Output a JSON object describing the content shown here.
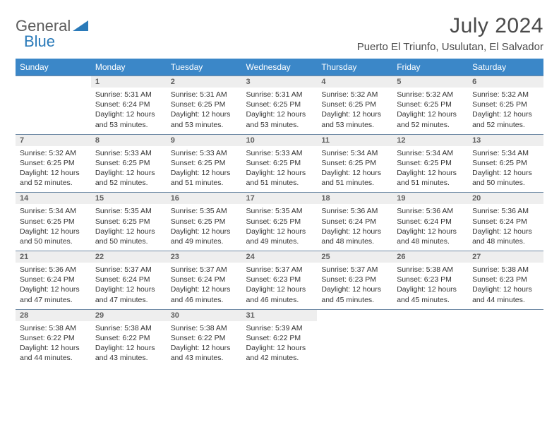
{
  "logo": {
    "general": "General",
    "blue": "Blue"
  },
  "title": "July 2024",
  "location": "Puerto El Triunfo, Usulutan, El Salvador",
  "header_bg": "#3b87c8",
  "header_fg": "#ffffff",
  "daynum_bg": "#eeeeee",
  "rule_color": "#6f8aa5",
  "weekdays": [
    "Sunday",
    "Monday",
    "Tuesday",
    "Wednesday",
    "Thursday",
    "Friday",
    "Saturday"
  ],
  "start_offset": 1,
  "days": [
    {
      "n": 1,
      "sr": "5:31 AM",
      "ss": "6:24 PM",
      "dl": "12 hours and 53 minutes."
    },
    {
      "n": 2,
      "sr": "5:31 AM",
      "ss": "6:25 PM",
      "dl": "12 hours and 53 minutes."
    },
    {
      "n": 3,
      "sr": "5:31 AM",
      "ss": "6:25 PM",
      "dl": "12 hours and 53 minutes."
    },
    {
      "n": 4,
      "sr": "5:32 AM",
      "ss": "6:25 PM",
      "dl": "12 hours and 53 minutes."
    },
    {
      "n": 5,
      "sr": "5:32 AM",
      "ss": "6:25 PM",
      "dl": "12 hours and 52 minutes."
    },
    {
      "n": 6,
      "sr": "5:32 AM",
      "ss": "6:25 PM",
      "dl": "12 hours and 52 minutes."
    },
    {
      "n": 7,
      "sr": "5:32 AM",
      "ss": "6:25 PM",
      "dl": "12 hours and 52 minutes."
    },
    {
      "n": 8,
      "sr": "5:33 AM",
      "ss": "6:25 PM",
      "dl": "12 hours and 52 minutes."
    },
    {
      "n": 9,
      "sr": "5:33 AM",
      "ss": "6:25 PM",
      "dl": "12 hours and 51 minutes."
    },
    {
      "n": 10,
      "sr": "5:33 AM",
      "ss": "6:25 PM",
      "dl": "12 hours and 51 minutes."
    },
    {
      "n": 11,
      "sr": "5:34 AM",
      "ss": "6:25 PM",
      "dl": "12 hours and 51 minutes."
    },
    {
      "n": 12,
      "sr": "5:34 AM",
      "ss": "6:25 PM",
      "dl": "12 hours and 51 minutes."
    },
    {
      "n": 13,
      "sr": "5:34 AM",
      "ss": "6:25 PM",
      "dl": "12 hours and 50 minutes."
    },
    {
      "n": 14,
      "sr": "5:34 AM",
      "ss": "6:25 PM",
      "dl": "12 hours and 50 minutes."
    },
    {
      "n": 15,
      "sr": "5:35 AM",
      "ss": "6:25 PM",
      "dl": "12 hours and 50 minutes."
    },
    {
      "n": 16,
      "sr": "5:35 AM",
      "ss": "6:25 PM",
      "dl": "12 hours and 49 minutes."
    },
    {
      "n": 17,
      "sr": "5:35 AM",
      "ss": "6:25 PM",
      "dl": "12 hours and 49 minutes."
    },
    {
      "n": 18,
      "sr": "5:36 AM",
      "ss": "6:24 PM",
      "dl": "12 hours and 48 minutes."
    },
    {
      "n": 19,
      "sr": "5:36 AM",
      "ss": "6:24 PM",
      "dl": "12 hours and 48 minutes."
    },
    {
      "n": 20,
      "sr": "5:36 AM",
      "ss": "6:24 PM",
      "dl": "12 hours and 48 minutes."
    },
    {
      "n": 21,
      "sr": "5:36 AM",
      "ss": "6:24 PM",
      "dl": "12 hours and 47 minutes."
    },
    {
      "n": 22,
      "sr": "5:37 AM",
      "ss": "6:24 PM",
      "dl": "12 hours and 47 minutes."
    },
    {
      "n": 23,
      "sr": "5:37 AM",
      "ss": "6:24 PM",
      "dl": "12 hours and 46 minutes."
    },
    {
      "n": 24,
      "sr": "5:37 AM",
      "ss": "6:23 PM",
      "dl": "12 hours and 46 minutes."
    },
    {
      "n": 25,
      "sr": "5:37 AM",
      "ss": "6:23 PM",
      "dl": "12 hours and 45 minutes."
    },
    {
      "n": 26,
      "sr": "5:38 AM",
      "ss": "6:23 PM",
      "dl": "12 hours and 45 minutes."
    },
    {
      "n": 27,
      "sr": "5:38 AM",
      "ss": "6:23 PM",
      "dl": "12 hours and 44 minutes."
    },
    {
      "n": 28,
      "sr": "5:38 AM",
      "ss": "6:22 PM",
      "dl": "12 hours and 44 minutes."
    },
    {
      "n": 29,
      "sr": "5:38 AM",
      "ss": "6:22 PM",
      "dl": "12 hours and 43 minutes."
    },
    {
      "n": 30,
      "sr": "5:38 AM",
      "ss": "6:22 PM",
      "dl": "12 hours and 43 minutes."
    },
    {
      "n": 31,
      "sr": "5:39 AM",
      "ss": "6:22 PM",
      "dl": "12 hours and 42 minutes."
    }
  ],
  "labels": {
    "sunrise": "Sunrise: ",
    "sunset": "Sunset: ",
    "daylight": "Daylight: "
  }
}
